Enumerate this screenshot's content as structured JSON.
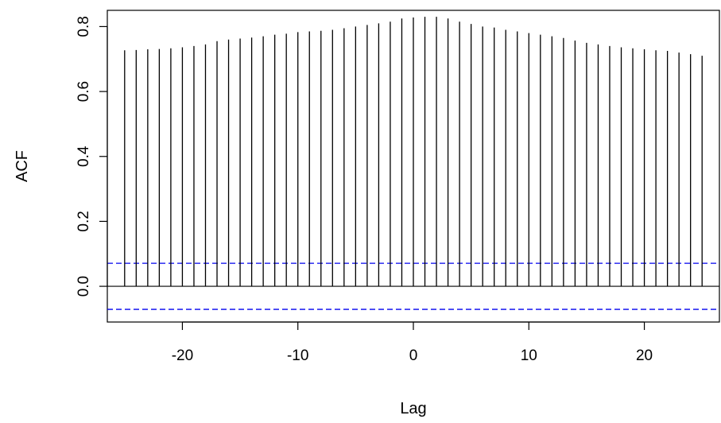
{
  "chart_data": {
    "type": "bar",
    "title": "",
    "xlabel": "Lag",
    "ylabel": "ACF",
    "xlim": [
      -26.5,
      26.5
    ],
    "ylim": [
      -0.11,
      0.85
    ],
    "x_ticks": [
      -20,
      -10,
      0,
      10,
      20
    ],
    "x_tick_labels": [
      "-20",
      "-10",
      "0",
      "10",
      "20"
    ],
    "y_ticks": [
      0.0,
      0.2,
      0.4,
      0.6,
      0.8
    ],
    "y_tick_labels": [
      "0.0",
      "0.2",
      "0.4",
      "0.6",
      "0.8"
    ],
    "x": [
      -25,
      -24,
      -23,
      -22,
      -21,
      -20,
      -19,
      -18,
      -17,
      -16,
      -15,
      -14,
      -13,
      -12,
      -11,
      -10,
      -9,
      -8,
      -7,
      -6,
      -5,
      -4,
      -3,
      -2,
      -1,
      0,
      1,
      2,
      3,
      4,
      5,
      6,
      7,
      8,
      9,
      10,
      11,
      12,
      13,
      14,
      15,
      16,
      17,
      18,
      19,
      20,
      21,
      22,
      23,
      24,
      25
    ],
    "values": [
      0.727,
      0.728,
      0.73,
      0.731,
      0.733,
      0.736,
      0.74,
      0.745,
      0.755,
      0.76,
      0.763,
      0.766,
      0.77,
      0.775,
      0.778,
      0.783,
      0.785,
      0.787,
      0.79,
      0.795,
      0.8,
      0.805,
      0.81,
      0.815,
      0.825,
      0.828,
      0.83,
      0.83,
      0.825,
      0.815,
      0.808,
      0.8,
      0.797,
      0.79,
      0.785,
      0.78,
      0.775,
      0.77,
      0.765,
      0.757,
      0.75,
      0.745,
      0.74,
      0.736,
      0.733,
      0.73,
      0.727,
      0.725,
      0.72,
      0.715,
      0.71
    ],
    "confidence_bounds": [
      0.071,
      -0.071
    ],
    "bound_color": "#0000ee",
    "bar_color": "#000000",
    "zero_line": true,
    "grid": false
  }
}
